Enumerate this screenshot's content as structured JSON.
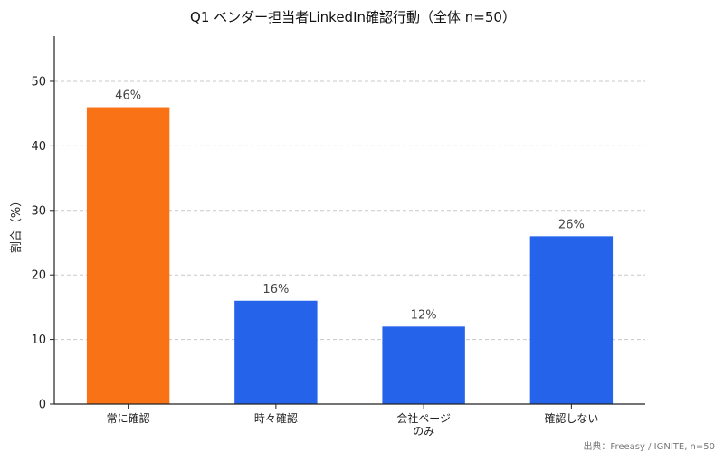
{
  "chart_data": {
    "type": "bar",
    "title": "Q1 ベンダー担当者LinkedIn確認行動（全体 n=50）",
    "ylabel": "割合（%）",
    "xlabel": "",
    "categories": [
      [
        "常に確認"
      ],
      [
        "時々確認"
      ],
      [
        "会社ページ",
        "のみ"
      ],
      [
        "確認しない"
      ]
    ],
    "values": [
      46,
      16,
      12,
      26
    ],
    "data_labels": [
      "46%",
      "16%",
      "12%",
      "26%"
    ],
    "colors": [
      "#f97316",
      "#2563eb",
      "#2563eb",
      "#2563eb"
    ],
    "ylim": [
      0,
      57
    ],
    "yticks": [
      0,
      10,
      20,
      30,
      40,
      50
    ],
    "grid": true,
    "source": "出典：Freeasy / IGNITE, n=50"
  }
}
